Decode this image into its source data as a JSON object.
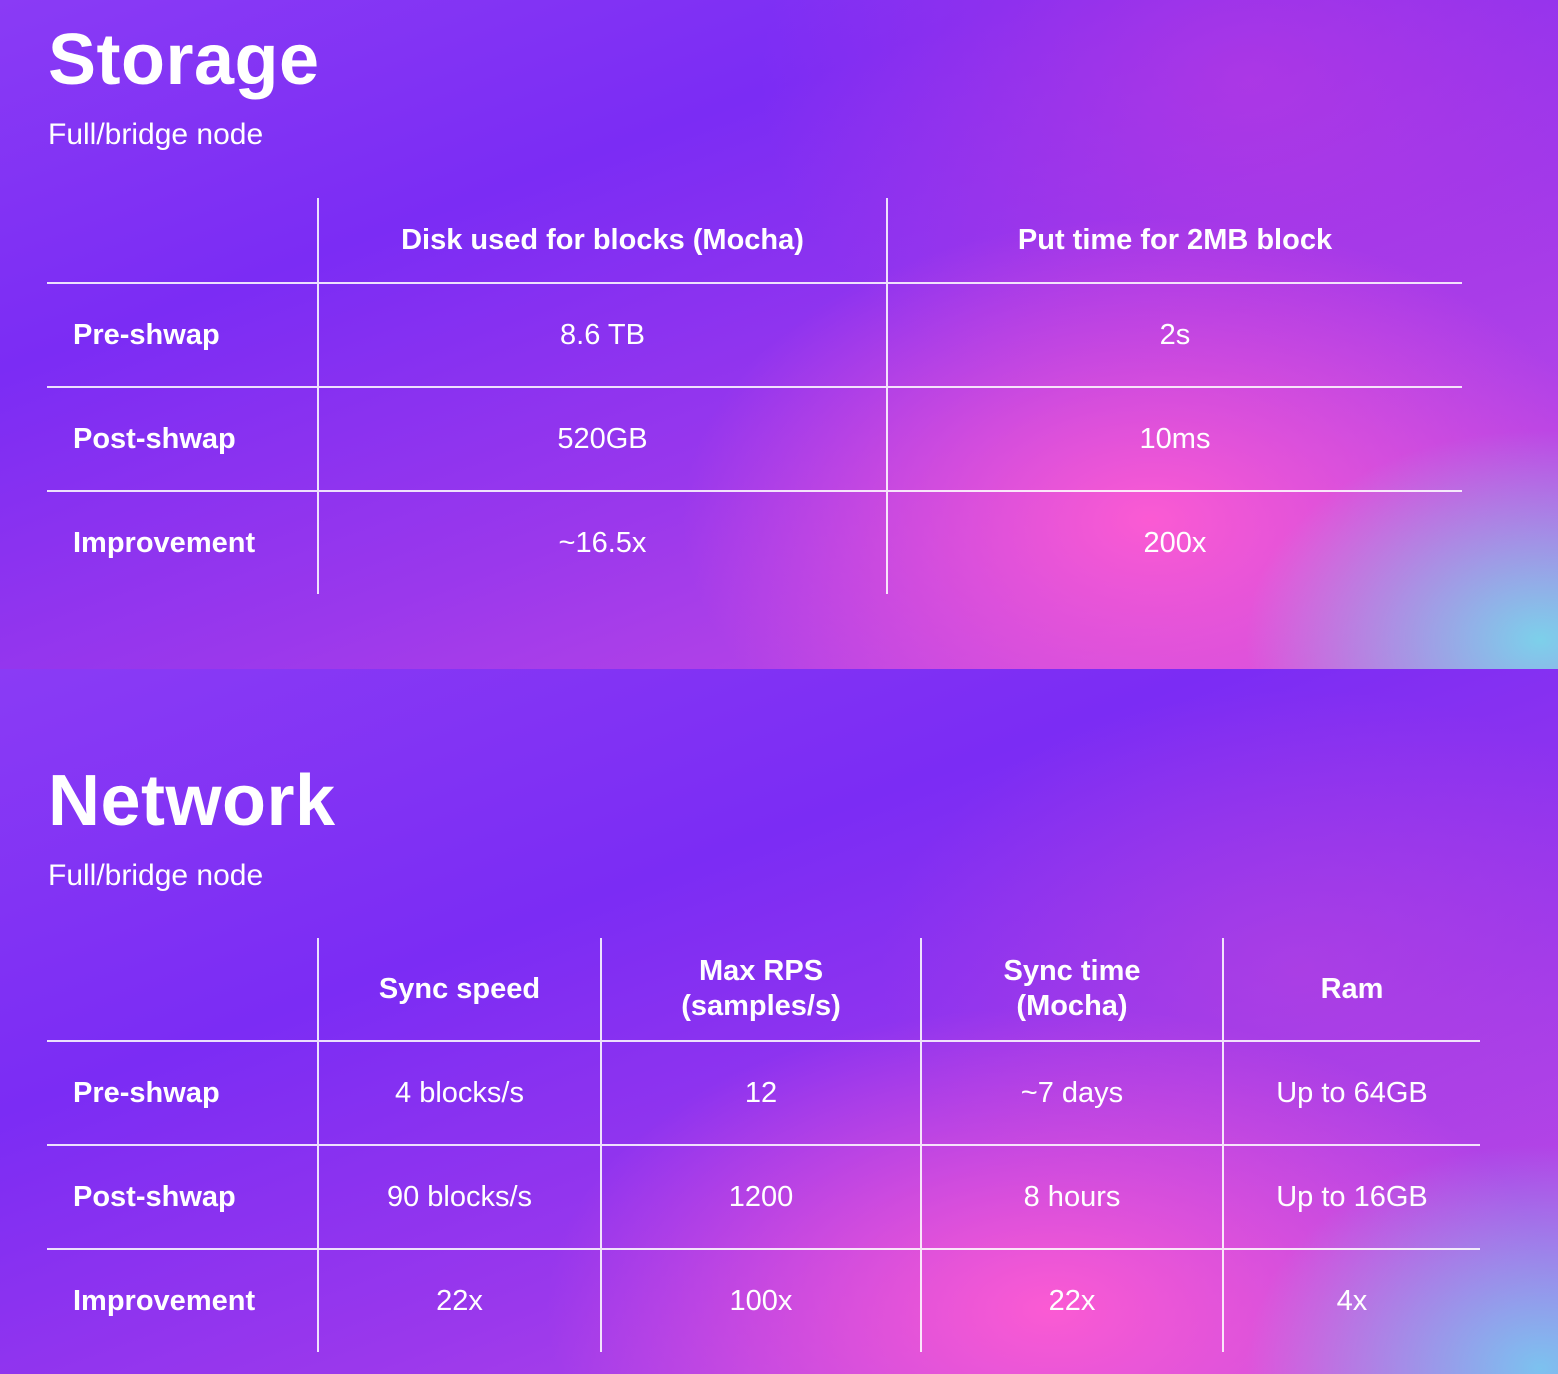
{
  "storage": {
    "title": "Storage",
    "subtitle": "Full/bridge node",
    "columns": [
      "",
      "Disk used for blocks (Mocha)",
      "Put time for 2MB block"
    ],
    "rows": [
      {
        "label": "Pre-shwap",
        "values": [
          "8.6 TB",
          "2s"
        ]
      },
      {
        "label": "Post-shwap",
        "values": [
          "520GB",
          "10ms"
        ]
      },
      {
        "label": "Improvement",
        "values": [
          "~16.5x",
          "200x"
        ]
      }
    ]
  },
  "network": {
    "title": "Network",
    "subtitle": "Full/bridge node",
    "columns": [
      "",
      "Sync speed",
      "Max RPS\n(samples/s)",
      "Sync time\n(Mocha)",
      "Ram"
    ],
    "rows": [
      {
        "label": "Pre-shwap",
        "values": [
          "4 blocks/s",
          "12",
          "~7 days",
          "Up to 64GB"
        ]
      },
      {
        "label": "Post-shwap",
        "values": [
          "90 blocks/s",
          "1200",
          "8 hours",
          "Up to 16GB"
        ]
      },
      {
        "label": "Improvement",
        "values": [
          "22x",
          "100x",
          "22x",
          "4x"
        ]
      }
    ]
  }
}
